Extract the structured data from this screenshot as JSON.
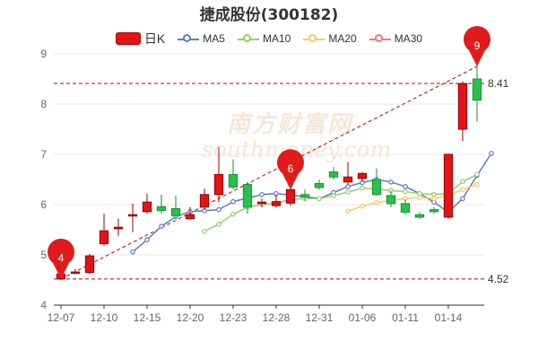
{
  "chart_data": {
    "type": "candlestick",
    "title": "捷成股份(300182)",
    "legend": [
      {
        "name": "日K",
        "color": "#e01515",
        "kind": "candle"
      },
      {
        "name": "MA5",
        "color": "#5a7ec2",
        "kind": "line"
      },
      {
        "name": "MA10",
        "color": "#93cf6f",
        "kind": "line"
      },
      {
        "name": "MA20",
        "color": "#f7c95e",
        "kind": "line"
      },
      {
        "name": "MA30",
        "color": "#ef7a7a",
        "kind": "line"
      }
    ],
    "legend_placement": "top-center",
    "ylim": [
      4,
      9
    ],
    "yticks": [
      "4",
      "5",
      "6",
      "7",
      "8",
      "9"
    ],
    "xtick_labels": [
      {
        "i": 0,
        "label": "12-07"
      },
      {
        "i": 3,
        "label": "12-10"
      },
      {
        "i": 6,
        "label": "12-15"
      },
      {
        "i": 9,
        "label": "12-20"
      },
      {
        "i": 12,
        "label": "12-23"
      },
      {
        "i": 15,
        "label": "12-28"
      },
      {
        "i": 18,
        "label": "12-31"
      },
      {
        "i": 21,
        "label": "01-06"
      },
      {
        "i": 24,
        "label": "01-11"
      },
      {
        "i": 27,
        "label": "01-14"
      }
    ],
    "candles": [
      {
        "o": 4.52,
        "c": 4.62,
        "h": 4.7,
        "l": 4.5,
        "color": "red"
      },
      {
        "o": 4.64,
        "c": 4.66,
        "h": 4.72,
        "l": 4.62,
        "color": "red"
      },
      {
        "o": 4.65,
        "c": 4.98,
        "h": 5.02,
        "l": 4.62,
        "color": "red"
      },
      {
        "o": 5.22,
        "c": 5.48,
        "h": 5.82,
        "l": 5.18,
        "color": "red"
      },
      {
        "o": 5.52,
        "c": 5.55,
        "h": 5.72,
        "l": 5.38,
        "color": "red"
      },
      {
        "o": 5.78,
        "c": 5.8,
        "h": 6.02,
        "l": 5.45,
        "color": "red"
      },
      {
        "o": 5.86,
        "c": 6.05,
        "h": 6.22,
        "l": 5.82,
        "color": "red"
      },
      {
        "o": 5.96,
        "c": 5.88,
        "h": 6.2,
        "l": 5.82,
        "color": "green"
      },
      {
        "o": 5.92,
        "c": 5.78,
        "h": 6.18,
        "l": 5.72,
        "color": "green"
      },
      {
        "o": 5.72,
        "c": 5.8,
        "h": 5.95,
        "l": 5.7,
        "color": "red"
      },
      {
        "o": 5.95,
        "c": 6.2,
        "h": 6.32,
        "l": 5.9,
        "color": "red"
      },
      {
        "o": 6.2,
        "c": 6.6,
        "h": 7.15,
        "l": 6.05,
        "color": "red"
      },
      {
        "o": 6.6,
        "c": 6.35,
        "h": 6.9,
        "l": 6.3,
        "color": "green"
      },
      {
        "o": 6.4,
        "c": 5.95,
        "h": 6.45,
        "l": 5.82,
        "color": "green"
      },
      {
        "o": 6.02,
        "c": 6.05,
        "h": 6.12,
        "l": 5.95,
        "color": "red"
      },
      {
        "o": 5.98,
        "c": 6.06,
        "h": 6.2,
        "l": 5.94,
        "color": "red"
      },
      {
        "o": 6.03,
        "c": 6.3,
        "h": 6.36,
        "l": 5.98,
        "color": "red"
      },
      {
        "o": 6.2,
        "c": 6.15,
        "h": 6.3,
        "l": 6.08,
        "color": "green"
      },
      {
        "o": 6.42,
        "c": 6.34,
        "h": 6.5,
        "l": 6.3,
        "color": "green"
      },
      {
        "o": 6.65,
        "c": 6.55,
        "h": 6.75,
        "l": 6.5,
        "color": "green"
      },
      {
        "o": 6.45,
        "c": 6.55,
        "h": 6.85,
        "l": 6.4,
        "color": "red"
      },
      {
        "o": 6.52,
        "c": 6.62,
        "h": 6.65,
        "l": 6.45,
        "color": "red"
      },
      {
        "o": 6.5,
        "c": 6.2,
        "h": 6.72,
        "l": 6.18,
        "color": "green"
      },
      {
        "o": 6.18,
        "c": 6.02,
        "h": 6.28,
        "l": 5.95,
        "color": "green"
      },
      {
        "o": 6.02,
        "c": 5.85,
        "h": 6.1,
        "l": 5.8,
        "color": "green"
      },
      {
        "o": 5.8,
        "c": 5.75,
        "h": 5.85,
        "l": 5.72,
        "color": "green"
      },
      {
        "o": 5.9,
        "c": 5.86,
        "h": 5.95,
        "l": 5.82,
        "color": "green"
      },
      {
        "o": 5.75,
        "c": 7.0,
        "h": 7.02,
        "l": 5.72,
        "color": "red"
      },
      {
        "o": 7.5,
        "c": 8.41,
        "h": 8.45,
        "l": 7.26,
        "color": "red"
      },
      {
        "o": 8.08,
        "c": 8.5,
        "h": 8.75,
        "l": 7.65,
        "color": "green"
      }
    ],
    "ma": [
      {
        "name": "MA5",
        "color": "#5a7ec2",
        "start": 5,
        "values": [
          5.06,
          5.3,
          5.57,
          5.76,
          5.86,
          5.88,
          5.9,
          6.06,
          6.13,
          6.2,
          6.22,
          6.19,
          6.16,
          6.12,
          6.24,
          6.36,
          6.44,
          6.5,
          6.45,
          6.36,
          6.22,
          6.05,
          5.85,
          6.12,
          6.58,
          7.02
        ]
      },
      {
        "name": "MA10",
        "color": "#93cf6f",
        "start": 10,
        "values": [
          5.47,
          5.61,
          5.81,
          5.95,
          6.0,
          6.03,
          6.1,
          6.12,
          6.12,
          6.18,
          6.25,
          6.33,
          6.31,
          6.28,
          6.26,
          6.22,
          6.2,
          6.22,
          6.46,
          6.6
        ]
      },
      {
        "name": "MA20",
        "color": "#f7c95e",
        "start": 20,
        "values": [
          5.87,
          5.97,
          6.04,
          6.08,
          6.12,
          6.14,
          6.12,
          6.18,
          6.3,
          6.4
        ]
      }
    ],
    "reference_lines": [
      {
        "value": 8.41,
        "label": "8.41"
      },
      {
        "value": 4.52,
        "label": "4.52"
      }
    ],
    "pins": [
      {
        "i": 0,
        "value": 4.52,
        "label": "4"
      },
      {
        "i": 16,
        "value": 6.3,
        "label": "6"
      },
      {
        "i": 29,
        "value": 8.75,
        "label": "9"
      }
    ],
    "trendline": {
      "from_i": 0,
      "from_value": 4.52,
      "to_i": 29,
      "to_value": 8.75
    },
    "watermark": {
      "cn": "南方财富网",
      "en": "southmoney.com"
    }
  },
  "colors": {
    "up": "#e01515",
    "down": "#27c24c",
    "grid": "#e8e8e8",
    "axis_text": "#666666",
    "ref_line": "#c00000",
    "pin": "#e01b1b"
  }
}
